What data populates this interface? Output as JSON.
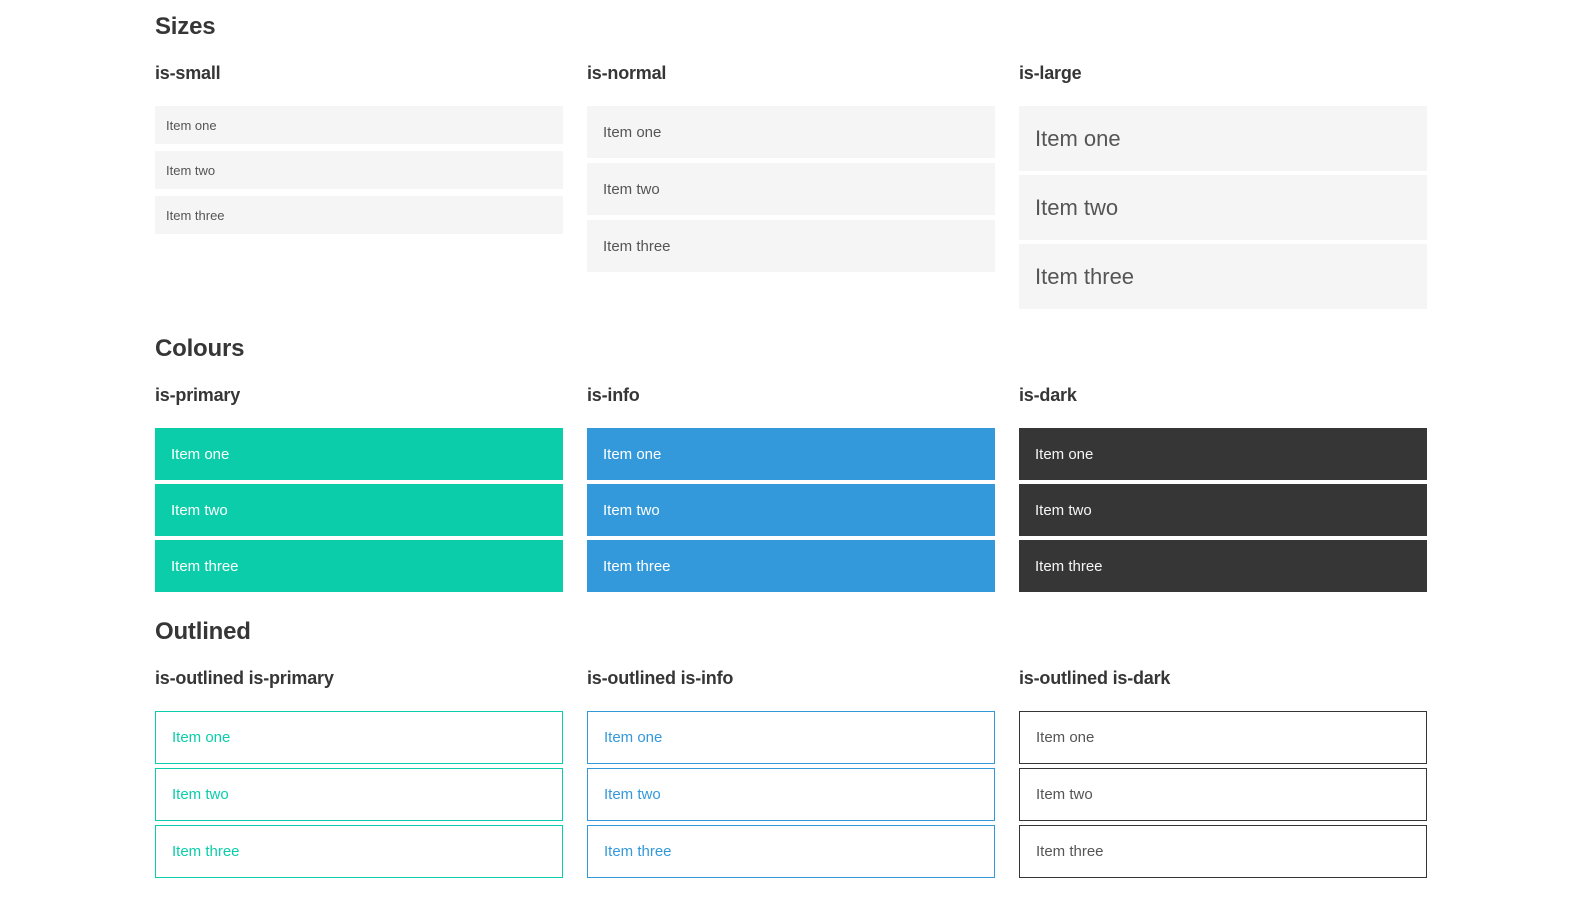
{
  "colors": {
    "primary": "#0bcdaa",
    "info": "#3499db",
    "dark": "#363636",
    "heading": "#363636",
    "item_bg": "#f5f5f5",
    "item_text": "#555555",
    "on_color": "#ffffff",
    "on_color_soft": "#f5f5f5",
    "page_bg": "#ffffff"
  },
  "sections": [
    {
      "id": "sizes",
      "title": "Sizes",
      "columns": [
        {
          "variant": "small",
          "heading": "is-small",
          "items": [
            "Item one",
            "Item two",
            "Item three"
          ]
        },
        {
          "variant": "normal",
          "heading": "is-normal",
          "items": [
            "Item one",
            "Item two",
            "Item three"
          ]
        },
        {
          "variant": "large",
          "heading": "is-large",
          "items": [
            "Item one",
            "Item two",
            "Item three"
          ]
        }
      ]
    },
    {
      "id": "colours",
      "title": "Colours",
      "columns": [
        {
          "variant": "primary",
          "heading": "is-primary",
          "items": [
            "Item one",
            "Item two",
            "Item three"
          ]
        },
        {
          "variant": "info",
          "heading": "is-info",
          "items": [
            "Item one",
            "Item two",
            "Item three"
          ]
        },
        {
          "variant": "dark",
          "heading": "is-dark",
          "items": [
            "Item one",
            "Item two",
            "Item three"
          ]
        }
      ]
    },
    {
      "id": "outlined",
      "title": "Outlined",
      "columns": [
        {
          "variant": "outlined-primary",
          "heading": "is-outlined is-primary",
          "items": [
            "Item one",
            "Item two",
            "Item three"
          ]
        },
        {
          "variant": "outlined-info",
          "heading": "is-outlined is-info",
          "items": [
            "Item one",
            "Item two",
            "Item three"
          ]
        },
        {
          "variant": "outlined-dark",
          "heading": "is-outlined is-dark",
          "items": [
            "Item one",
            "Item two",
            "Item three"
          ]
        }
      ]
    }
  ]
}
